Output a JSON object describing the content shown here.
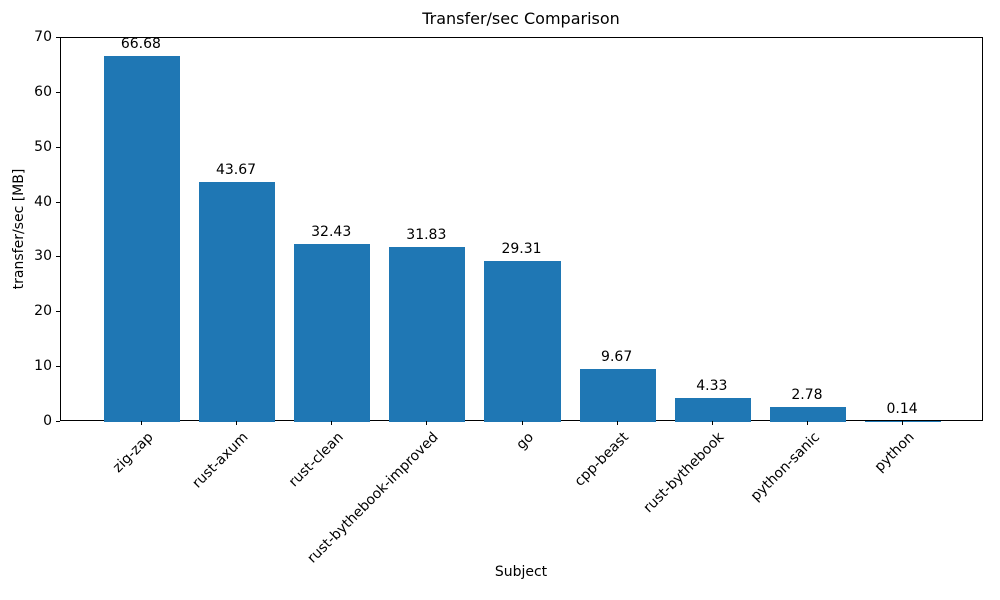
{
  "chart_data": {
    "type": "bar",
    "title": "Transfer/sec Comparison",
    "xlabel": "Subject",
    "ylabel": "transfer/sec [MB]",
    "categories": [
      "zig-zap",
      "rust-axum",
      "rust-clean",
      "rust-bythebook-improved",
      "go",
      "cpp-beast",
      "rust-bythebook",
      "python-sanic",
      "python"
    ],
    "values": [
      66.68,
      43.67,
      32.43,
      31.83,
      29.31,
      9.67,
      4.33,
      2.78,
      0.14
    ],
    "value_labels": [
      "66.68",
      "43.67",
      "32.43",
      "31.83",
      "29.31",
      "9.67",
      "4.33",
      "2.78",
      "0.14"
    ],
    "ylim": [
      0,
      70
    ],
    "yticks": [
      0,
      10,
      20,
      30,
      40,
      50,
      60,
      70
    ],
    "bar_color": "#1f77b4",
    "axis_color": "#000000",
    "text_color": "#000000",
    "grid": false,
    "legend": "none",
    "x_tick_rotation_deg": 45
  }
}
